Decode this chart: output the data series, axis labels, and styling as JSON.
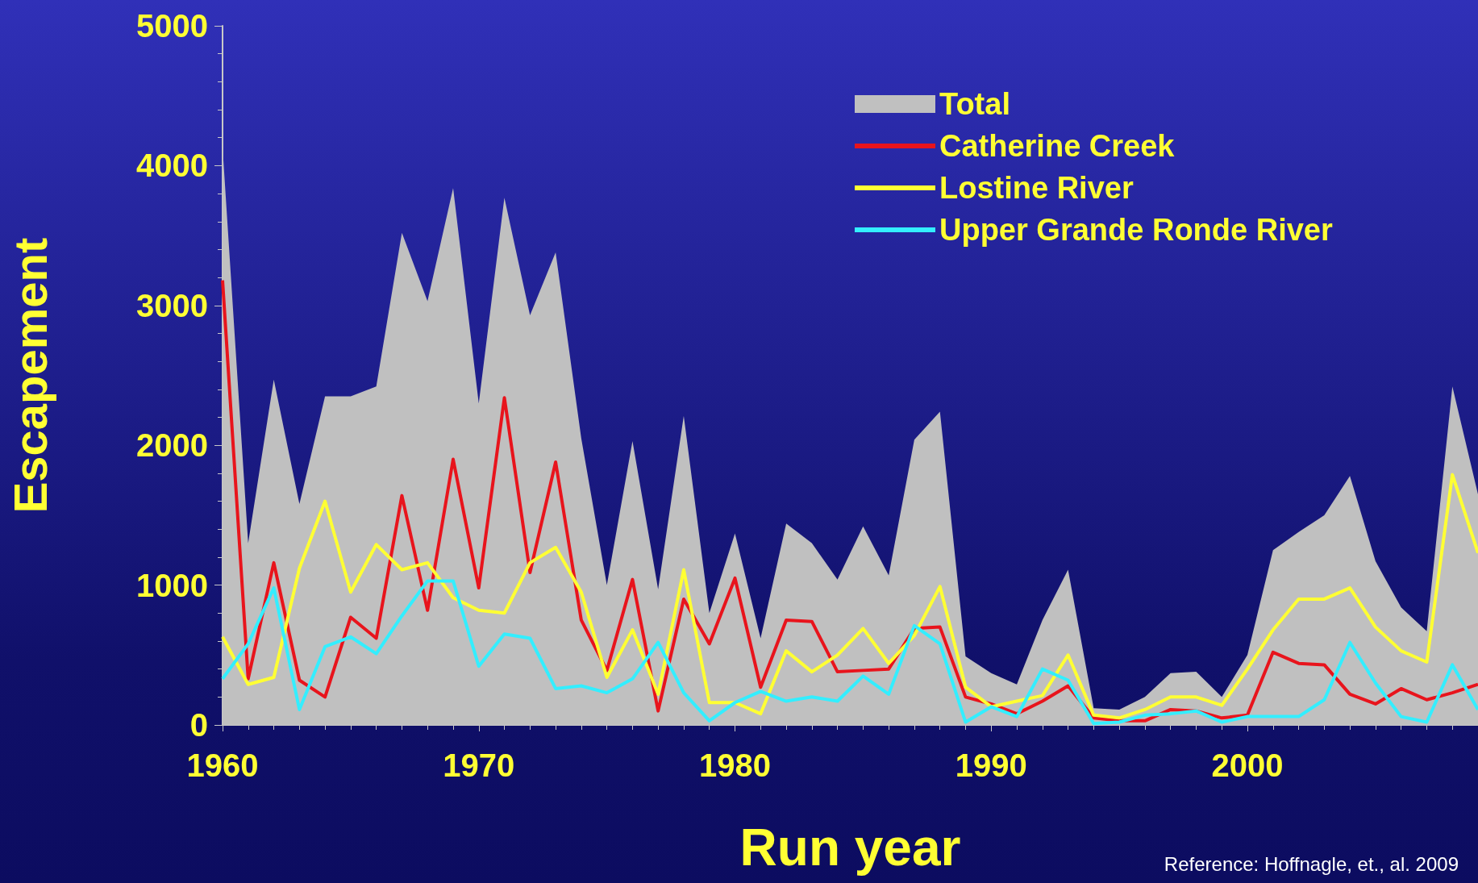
{
  "chart_data": {
    "type": "line",
    "xlabel": "Run year",
    "ylabel": "Escapement",
    "x": [
      1960,
      1961,
      1962,
      1963,
      1964,
      1965,
      1966,
      1967,
      1968,
      1969,
      1970,
      1971,
      1972,
      1973,
      1974,
      1975,
      1976,
      1977,
      1978,
      1979,
      1980,
      1981,
      1982,
      1983,
      1984,
      1985,
      1986,
      1987,
      1988,
      1989,
      1990,
      1991,
      1992,
      1993,
      1994,
      1995,
      1996,
      1997,
      1998,
      1999,
      2000,
      2001,
      2002,
      2003,
      2004,
      2005,
      2006,
      2007,
      2008,
      2009
    ],
    "series": [
      {
        "name": "Total",
        "type": "area",
        "color": "#c0c0c0",
        "values": [
          4130,
          1300,
          2470,
          1580,
          2350,
          2350,
          2420,
          3520,
          3030,
          3840,
          2300,
          3770,
          2930,
          3380,
          2050,
          1000,
          2030,
          970,
          2210,
          800,
          1370,
          620,
          1440,
          1300,
          1040,
          1420,
          1070,
          2040,
          2240,
          490,
          370,
          290,
          750,
          1110,
          120,
          110,
          200,
          370,
          380,
          200,
          500,
          1250,
          1380,
          1500,
          1780,
          1170,
          840,
          670,
          2420,
          1650
        ]
      },
      {
        "name": "Catherine Creek",
        "color": "#e8141c",
        "values": [
          3180,
          330,
          1160,
          320,
          200,
          770,
          620,
          1640,
          820,
          1900,
          980,
          2340,
          1090,
          1880,
          750,
          390,
          1040,
          100,
          900,
          580,
          1050,
          270,
          750,
          740,
          380,
          390,
          400,
          690,
          700,
          200,
          150,
          80,
          170,
          280,
          50,
          30,
          30,
          110,
          100,
          50,
          70,
          520,
          440,
          430,
          220,
          150,
          260,
          180,
          230,
          290
        ]
      },
      {
        "name": "Lostine River",
        "color": "#ffff33",
        "values": [
          630,
          290,
          340,
          1120,
          1600,
          950,
          1290,
          1110,
          1160,
          910,
          820,
          800,
          1160,
          1270,
          950,
          340,
          680,
          220,
          1110,
          160,
          160,
          80,
          530,
          380,
          500,
          690,
          440,
          640,
          990,
          270,
          130,
          170,
          210,
          500,
          70,
          50,
          110,
          200,
          200,
          140,
          400,
          680,
          900,
          900,
          980,
          700,
          530,
          450,
          1790,
          1230
        ]
      },
      {
        "name": "Upper Grande Ronde River",
        "color": "#33eeff",
        "values": [
          330,
          580,
          980,
          110,
          560,
          630,
          510,
          780,
          1030,
          1030,
          420,
          650,
          620,
          260,
          280,
          230,
          330,
          590,
          230,
          30,
          160,
          240,
          170,
          200,
          170,
          350,
          220,
          710,
          580,
          20,
          130,
          60,
          400,
          320,
          10,
          20,
          70,
          80,
          100,
          20,
          60,
          60,
          60,
          180,
          590,
          300,
          60,
          20,
          430,
          110
        ]
      }
    ],
    "xlim": [
      1960,
      2009
    ],
    "xticks": [
      1960,
      1970,
      1980,
      1990,
      2000
    ],
    "ylim": [
      0,
      5000
    ],
    "yticks": [
      0,
      1000,
      2000,
      3000,
      4000,
      5000
    ],
    "grid": false,
    "legend": "top right",
    "marker": "none",
    "annotations": [
      "Reference: Hoffnagle, et., al. 2009"
    ]
  }
}
